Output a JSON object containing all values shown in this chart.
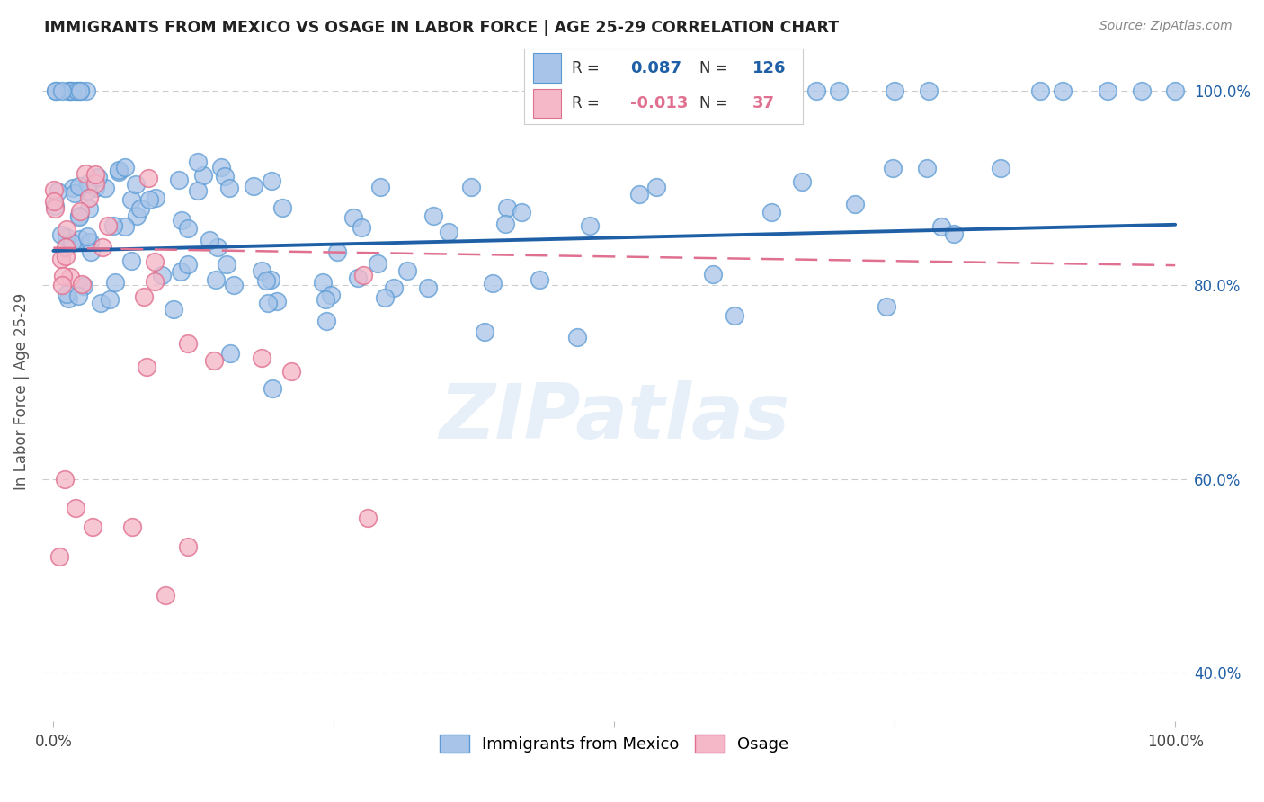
{
  "title": "IMMIGRANTS FROM MEXICO VS OSAGE IN LABOR FORCE | AGE 25-29 CORRELATION CHART",
  "source": "Source: ZipAtlas.com",
  "ylabel": "In Labor Force | Age 25-29",
  "legend_label_blue": "Immigrants from Mexico",
  "legend_label_pink": "Osage",
  "r_blue": 0.087,
  "n_blue": 126,
  "r_pink": -0.013,
  "n_pink": 37,
  "blue_color": "#a8c4e8",
  "blue_edge_color": "#5b9bd5",
  "pink_color": "#f4b8c8",
  "pink_edge_color": "#e07090",
  "blue_trend_color": "#1f5fa6",
  "pink_trend_color": "#e07090",
  "watermark": "ZIPatlas",
  "xlim": [
    0.0,
    1.0
  ],
  "ylim": [
    0.35,
    1.03
  ],
  "yticks": [
    0.4,
    0.6,
    0.8,
    1.0
  ],
  "xticks": [
    0.0,
    0.25,
    0.5,
    0.75,
    1.0
  ],
  "grid_color": "#cccccc",
  "blue_trend_start": 0.835,
  "blue_trend_end": 0.862,
  "pink_trend_start": 0.838,
  "pink_trend_end": 0.82
}
